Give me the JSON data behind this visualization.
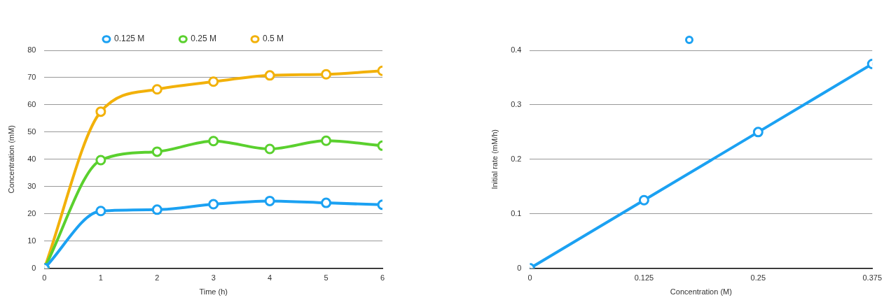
{
  "chart_data": [
    {
      "type": "line",
      "xlabel": "Time (h)",
      "ylabel": "Concentration (mM)",
      "x": [
        0,
        1,
        2,
        3,
        4,
        5,
        6
      ],
      "xlim": [
        0,
        6
      ],
      "xticks": [
        0,
        1,
        2,
        3,
        4,
        5,
        6
      ],
      "ylim": [
        0,
        80
      ],
      "yticks": [
        0,
        10,
        20,
        30,
        40,
        50,
        60,
        70,
        80
      ],
      "grid": "y",
      "legend": "top",
      "marker": "circle",
      "line_style": "solid",
      "series": [
        {
          "name": "0.125 M",
          "color": "#1ba1f2",
          "values": [
            0,
            21,
            21.5,
            23.5,
            24.7,
            24,
            23.3
          ]
        },
        {
          "name": "0.25 M",
          "color": "#5ad02e",
          "values": [
            0,
            39.7,
            42.8,
            46.7,
            43.8,
            46.8,
            45
          ]
        },
        {
          "name": "0.5 M",
          "color": "#f2b10a",
          "values": [
            0,
            57.5,
            65.7,
            68.5,
            70.8,
            71.2,
            72.5
          ]
        }
      ]
    },
    {
      "type": "line",
      "xlabel": "Concentration (M)",
      "ylabel": "Initial rate (mM/h)",
      "x": [
        0,
        0.125,
        0.25,
        0.375
      ],
      "xlim": [
        0,
        0.375
      ],
      "xticks": [
        0,
        0.125,
        0.25,
        0.375
      ],
      "ylim": [
        0,
        0.4
      ],
      "yticks": [
        0,
        0.1,
        0.2,
        0.3,
        0.4
      ],
      "grid": "y",
      "marker": "circle",
      "line_style": "solid",
      "series": [
        {
          "color": "#1ba1f2",
          "values": [
            0,
            0.125,
            0.25,
            0.375
          ]
        }
      ]
    }
  ]
}
